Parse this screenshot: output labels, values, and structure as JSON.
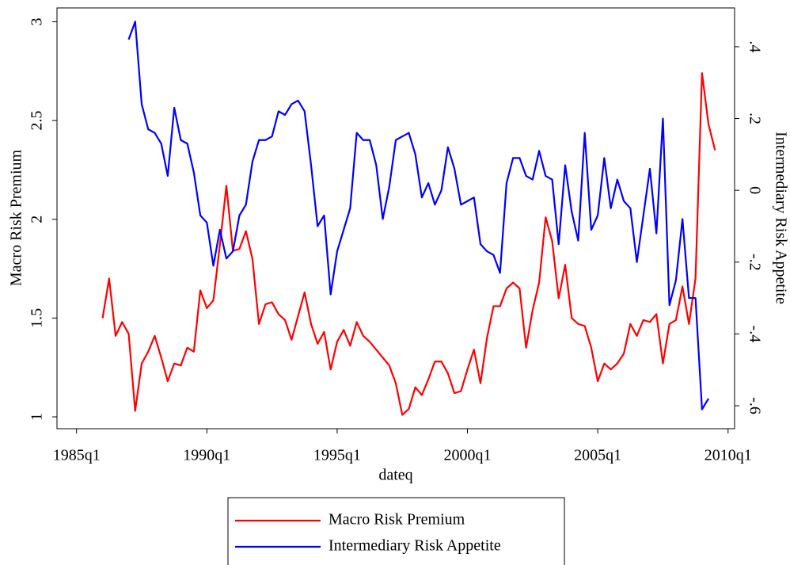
{
  "chart_data": {
    "type": "line",
    "y_label": "Macro Risk Premium",
    "y2_label": "Intermediary Risk Appetite",
    "x_label": "dateq",
    "x": [
      "1986q1",
      "1986q2",
      "1986q3",
      "1986q4",
      "1987q1",
      "1987q2",
      "1987q3",
      "1987q4",
      "1988q1",
      "1988q2",
      "1988q3",
      "1988q4",
      "1989q1",
      "1989q2",
      "1989q3",
      "1989q4",
      "1990q1",
      "1990q2",
      "1990q3",
      "1990q4",
      "1991q1",
      "1991q2",
      "1991q3",
      "1991q4",
      "1992q1",
      "1992q2",
      "1992q3",
      "1992q4",
      "1993q1",
      "1993q2",
      "1993q3",
      "1993q4",
      "1994q1",
      "1994q2",
      "1994q3",
      "1994q4",
      "1995q1",
      "1995q2",
      "1995q3",
      "1995q4",
      "1996q1",
      "1996q2",
      "1996q3",
      "1996q4",
      "1997q1",
      "1997q2",
      "1997q3",
      "1997q4",
      "1998q1",
      "1998q2",
      "1998q3",
      "1998q4",
      "1999q1",
      "1999q2",
      "1999q3",
      "1999q4",
      "2000q1",
      "2000q2",
      "2000q3",
      "2000q4",
      "2001q1",
      "2001q2",
      "2001q3",
      "2001q4",
      "2002q1",
      "2002q2",
      "2002q3",
      "2002q4",
      "2003q1",
      "2003q2",
      "2003q3",
      "2003q4",
      "2004q1",
      "2004q2",
      "2004q3",
      "2004q4",
      "2005q1",
      "2005q2",
      "2005q3",
      "2005q4",
      "2006q1",
      "2006q2",
      "2006q3",
      "2006q4",
      "2007q1",
      "2007q2",
      "2007q3",
      "2007q4",
      "2008q1",
      "2008q2",
      "2008q3",
      "2008q4",
      "2009q1",
      "2009q2",
      "2009q3"
    ],
    "series": [
      {
        "name": "Macro Risk Premium",
        "color": "#ff0000",
        "values": [
          1.5,
          1.7,
          1.41,
          1.48,
          1.42,
          1.03,
          1.27,
          1.33,
          1.41,
          1.3,
          1.18,
          1.27,
          1.26,
          1.35,
          1.33,
          1.64,
          1.55,
          1.59,
          1.87,
          2.17,
          1.84,
          1.85,
          1.94,
          1.8,
          1.47,
          1.57,
          1.58,
          1.52,
          1.49,
          1.39,
          1.51,
          1.63,
          1.47,
          1.37,
          1.43,
          1.24,
          1.38,
          1.44,
          1.36,
          1.48,
          1.41,
          1.38,
          1.34,
          1.3,
          1.26,
          1.17,
          1.01,
          1.04,
          1.15,
          1.11,
          1.19,
          1.28,
          1.28,
          1.22,
          1.12,
          1.13,
          1.24,
          1.34,
          1.17,
          1.4,
          1.56,
          1.56,
          1.65,
          1.68,
          1.65,
          1.35,
          1.54,
          1.68,
          2.01,
          1.89,
          1.6,
          1.77,
          1.5,
          1.47,
          1.46,
          1.35,
          1.18,
          1.27,
          1.24,
          1.27,
          1.32,
          1.47,
          1.41,
          1.49,
          1.48,
          1.52,
          1.27,
          1.47,
          1.49,
          1.66,
          1.47,
          1.7,
          2.74,
          2.48,
          2.35
        ]
      },
      {
        "name": "Intermediary Risk Appetite",
        "color": "#0000ff",
        "axis": "y2",
        "values": [
          null,
          null,
          null,
          null,
          0.42,
          0.47,
          0.24,
          0.17,
          0.16,
          0.13,
          0.04,
          0.23,
          0.14,
          0.13,
          0.05,
          -0.07,
          -0.09,
          -0.21,
          -0.11,
          -0.19,
          -0.17,
          -0.07,
          -0.04,
          0.08,
          0.14,
          0.14,
          0.15,
          0.22,
          0.21,
          0.24,
          0.25,
          0.22,
          0.07,
          -0.1,
          -0.07,
          -0.29,
          -0.17,
          -0.11,
          -0.05,
          0.16,
          0.14,
          0.14,
          0.07,
          -0.08,
          0.01,
          0.14,
          0.15,
          0.16,
          0.1,
          -0.02,
          0.02,
          -0.04,
          0.0,
          0.12,
          0.06,
          -0.04,
          -0.03,
          -0.02,
          -0.15,
          -0.17,
          -0.18,
          -0.23,
          0.02,
          0.09,
          0.09,
          0.04,
          0.03,
          0.11,
          0.04,
          0.03,
          -0.15,
          0.07,
          -0.06,
          -0.14,
          0.16,
          -0.11,
          -0.07,
          0.09,
          -0.05,
          0.03,
          -0.03,
          -0.05,
          -0.2,
          -0.07,
          0.06,
          -0.12,
          0.2,
          -0.32,
          -0.25,
          -0.08,
          -0.3,
          -0.3,
          -0.61,
          -0.58,
          null
        ]
      }
    ],
    "xlim": [
      "1984q2",
      "2010q2"
    ],
    "xticks": [
      "1985q1",
      "1990q1",
      "1995q1",
      "2000q1",
      "2005q1",
      "2010q1"
    ],
    "ylim": [
      0.94,
      3.07
    ],
    "yticks": [
      1,
      1.5,
      2,
      2.5,
      3
    ],
    "y2lim": [
      -0.664,
      0.508
    ],
    "y2ticks": [
      {
        "value": -0.6,
        "label": "-.6"
      },
      {
        "value": -0.4,
        "label": "-.4"
      },
      {
        "value": -0.2,
        "label": "-.2"
      },
      0,
      {
        "value": 0.2,
        "label": ".2"
      },
      {
        "value": 0.4,
        "label": ".4"
      }
    ],
    "legend": "bottom"
  }
}
